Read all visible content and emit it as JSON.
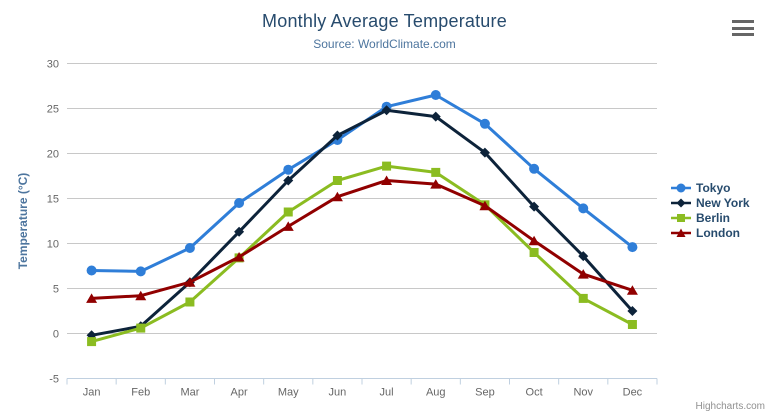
{
  "header": {
    "title": "Monthly Average Temperature",
    "subtitle": "Source: WorldClimate.com"
  },
  "credits": {
    "label": "Highcharts.com"
  },
  "context_menu": {
    "icon": "hamburger-icon"
  },
  "colors": {
    "title": "#274b6d",
    "subtitle": "#4d759e",
    "grid_line": "#c8c8c8",
    "axis_line": "#c0d0e0",
    "tick_label": "#666666",
    "axis_title": "#4d759e",
    "legend_text": "#274b6d",
    "credits_text": "#909090"
  },
  "chart_data": {
    "type": "line",
    "title": "Monthly Average Temperature",
    "subtitle": "Source: WorldClimate.com",
    "xlabel": "",
    "ylabel": "Temperature (°C)",
    "categories": [
      "Jan",
      "Feb",
      "Mar",
      "Apr",
      "May",
      "Jun",
      "Jul",
      "Aug",
      "Sep",
      "Oct",
      "Nov",
      "Dec"
    ],
    "ylim": [
      -5,
      30
    ],
    "yticks": [
      -5,
      0,
      5,
      10,
      15,
      20,
      25,
      30
    ],
    "grid": true,
    "legend_position": "right",
    "series": [
      {
        "name": "Tokyo",
        "color": "#2f7ed8",
        "marker": "circle",
        "values": [
          7.0,
          6.9,
          9.5,
          14.5,
          18.2,
          21.5,
          25.2,
          26.5,
          23.3,
          18.3,
          13.9,
          9.6
        ]
      },
      {
        "name": "New York",
        "color": "#0d233a",
        "marker": "diamond",
        "values": [
          -0.2,
          0.8,
          5.7,
          11.3,
          17.0,
          22.0,
          24.8,
          24.1,
          20.1,
          14.1,
          8.6,
          2.5
        ]
      },
      {
        "name": "Berlin",
        "color": "#8bbc21",
        "marker": "square",
        "values": [
          -0.9,
          0.6,
          3.5,
          8.4,
          13.5,
          17.0,
          18.6,
          17.9,
          14.3,
          9.0,
          3.9,
          1.0
        ]
      },
      {
        "name": "London",
        "color": "#910000",
        "marker": "triangle",
        "values": [
          3.9,
          4.2,
          5.7,
          8.5,
          11.9,
          15.2,
          17.0,
          16.6,
          14.2,
          10.3,
          6.6,
          4.8
        ]
      }
    ]
  }
}
